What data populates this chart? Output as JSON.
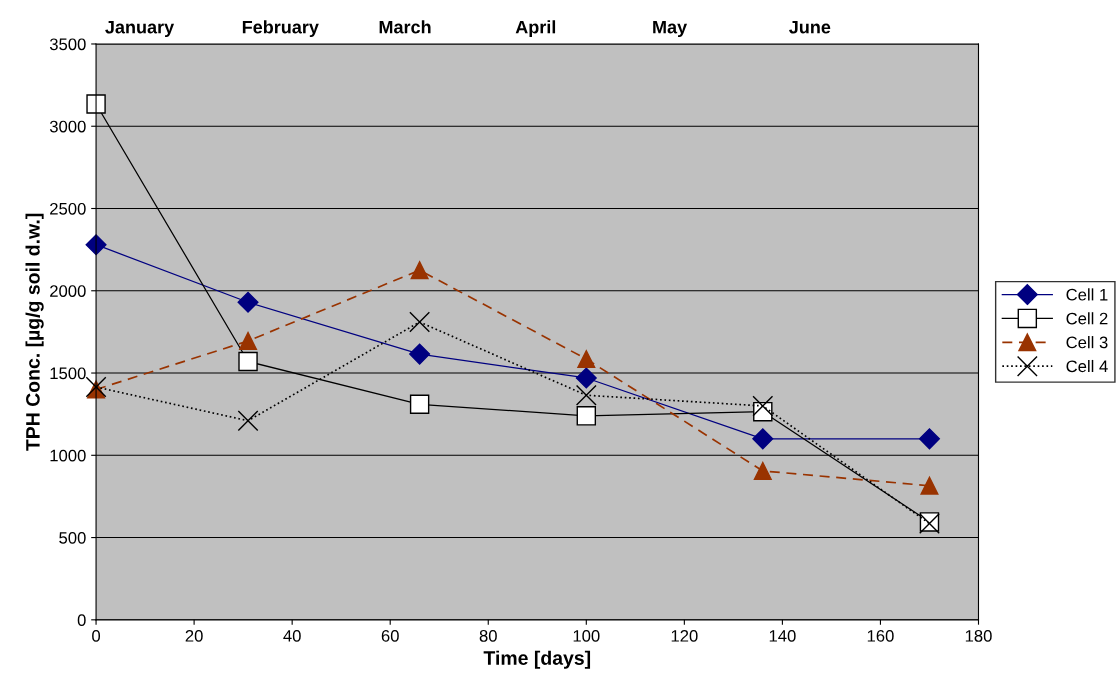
{
  "chart_data": {
    "type": "line",
    "xlabel": "Time [days]",
    "ylabel": "TPH Conc. [µg/g soil d.w.]",
    "xlim": [
      0,
      180
    ],
    "xticks": [
      0,
      20,
      40,
      60,
      80,
      100,
      120,
      140,
      160,
      180
    ],
    "ylim": [
      0,
      3500
    ],
    "yticks": [
      0,
      500,
      1000,
      1500,
      2000,
      2500,
      3000,
      3500
    ],
    "annotations": [
      "January",
      "February",
      "March",
      "April",
      "May",
      "June"
    ],
    "grid": "y",
    "legend": "right",
    "x": [
      0,
      31,
      66,
      100,
      136,
      170
    ],
    "series": [
      {
        "name": "Cell 1",
        "color": "#000080",
        "marker": "diamond",
        "line_style": "solid",
        "values": [
          2280,
          1930,
          1615,
          1470,
          1100,
          1100
        ]
      },
      {
        "name": "Cell 2",
        "color": "#000000",
        "marker": "square",
        "line_style": "solid",
        "values": [
          3135,
          1570,
          1310,
          1240,
          1265,
          595
        ]
      },
      {
        "name": "Cell 3",
        "color": "#993300",
        "marker": "triangle",
        "line_style": "dashed",
        "values": [
          1400,
          1695,
          2125,
          1585,
          905,
          815
        ]
      },
      {
        "name": "Cell 4",
        "color": "#000000",
        "marker": "cross",
        "line_style": "dotted",
        "values": [
          1415,
          1210,
          1810,
          1365,
          1300,
          585
        ]
      }
    ]
  }
}
